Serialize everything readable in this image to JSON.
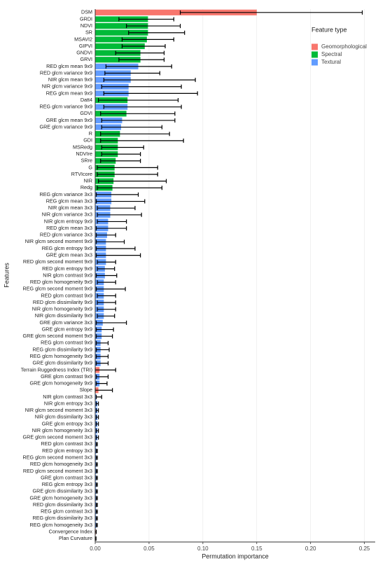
{
  "chart_data": {
    "type": "hbar_errorbar",
    "x_label": "Permutation importance",
    "y_label": "Features",
    "legend_title": "Feature type",
    "categories": [
      "DSM",
      "GRDI",
      "NDVI",
      "SR",
      "MSAVI2",
      "GIPVI",
      "GNDVI",
      "GRVI",
      "RED glcm mean 9x9",
      "RED glcm variance 9x9",
      "NIR glcm mean 9x9",
      "NIR glcm variance 9x9",
      "REG glcm mean 9x9",
      "Datt4",
      "REG glcm variance 9x9",
      "GDVI",
      "GRE glcm mean 9x9",
      "GRE glcm variance 9x9",
      "R",
      "GDI",
      "MSRedg",
      "NDVIre",
      "SRre",
      "G",
      "RTVIcore",
      "NIR",
      "Redg",
      "REG glcm variance 3x3",
      "REG glcm mean 3x3",
      "NIR glcm mean 3x3",
      "NIR glcm variance 3x3",
      "NIR glcm entropy 9x9",
      "RED glcm mean 3x3",
      "RED glcm variance 3x3",
      "NIR glcm second moment 9x9",
      "REG glcm entropy 9x9",
      "GRE glcm mean 3x3",
      "RED glcm second moment 9x9",
      "RED glcm entropy 9x9",
      "NIR glcm contrast 9x9",
      "RED glcm homogeneity 9x9",
      "REG glcm second moment 9x9",
      "RED glcm contrast 9x9",
      "RED glcm dissimilarity 9x9",
      "NIR glcm homogeneity 9x9",
      "NIR glcm dissimilarity 9x9",
      "GRE glcm variance 3x3",
      "GRE glcm entropy 9x9",
      "GRE glcm second moment 9x9",
      "REG glcm contrast 9x9",
      "REG glcm dissimilarity 9x9",
      "REG glcm homogeneity 9x9",
      "GRE glcm dissimilarity 9x9",
      "Terrain Ruggedness Index (TRI)",
      "GRE glcm contrast 9x9",
      "GRE glcm homogeneity 9x9",
      "Slope",
      "NIR glcm contrast 3x3",
      "NIR glcm entropy 3x3",
      "NIR glcm second moment 3x3",
      "NIR glcm dissimilarity 3x3",
      "GRE glcm entropy 3x3",
      "NIR glcm homogeneity 3x3",
      "GRE glcm second moment 3x3",
      "RED glcm contrast 3x3",
      "RED glcm entropy 3x3",
      "REG glcm second moment 3x3",
      "RED glcm homogeneity 3x3",
      "RED glcm second moment 3x3",
      "GRE glcm contrast 3x3",
      "REG glcm entropy 3x3",
      "GRE glcm dissimilarity 3x3",
      "GRE glcm homogeneity 3x3",
      "RED glcm dissimilarity 3x3",
      "REG glcm contrast 3x3",
      "REG glcm dissimilarity 3x3",
      "REG glcm homogeneity 3x3",
      "Convergence Index",
      "Plan Curvature"
    ],
    "values": [
      0.15,
      0.049,
      0.049,
      0.049,
      0.048,
      0.046,
      0.042,
      0.042,
      0.04,
      0.033,
      0.033,
      0.031,
      0.031,
      0.03,
      0.03,
      0.029,
      0.025,
      0.024,
      0.023,
      0.021,
      0.021,
      0.021,
      0.019,
      0.018,
      0.018,
      0.017,
      0.016,
      0.015,
      0.015,
      0.014,
      0.014,
      0.012,
      0.012,
      0.011,
      0.01,
      0.01,
      0.01,
      0.01,
      0.009,
      0.009,
      0.008,
      0.008,
      0.008,
      0.008,
      0.008,
      0.008,
      0.007,
      0.006,
      0.006,
      0.005,
      0.005,
      0.005,
      0.005,
      0.004,
      0.004,
      0.004,
      0.003,
      0.001,
      0.002,
      0.002,
      0.002,
      0.002,
      0.002,
      0.002,
      0.001,
      0.001,
      0.001,
      0.001,
      0.001,
      0.001,
      0.001,
      0.001,
      0.001,
      0.001,
      0.001,
      0.001,
      0.001,
      0.0005,
      0.0003
    ],
    "lower": [
      0.079,
      0.022,
      0.029,
      0.031,
      0.025,
      0.025,
      0.019,
      0.022,
      0.01,
      0.009,
      0.008,
      0.006,
      0.008,
      0.003,
      0.008,
      0.005,
      0.006,
      0.006,
      0.005,
      0.005,
      0.006,
      0.006,
      0.005,
      0.002,
      0.002,
      0.003,
      0.002,
      0.001,
      0.001,
      0.002,
      0.002,
      0.002,
      0.001,
      0.001,
      0.001,
      0.001,
      0.001,
      0.002,
      0.002,
      0.001,
      0.002,
      0.001,
      0.002,
      0.002,
      0.002,
      0.002,
      0.001,
      0.001,
      0.001,
      0.001,
      0.001,
      0.001,
      0.001,
      0.0,
      0.001,
      0.001,
      0.0,
      0.001,
      0.001,
      0.001,
      0.001,
      0.001,
      0.001,
      0.001,
      0.001,
      0.001,
      0.001,
      0.001,
      0.001,
      0.001,
      0.001,
      0.001,
      0.001,
      0.001,
      0.001,
      0.001,
      0.001,
      0.0,
      0.0
    ],
    "upper": [
      0.248,
      0.073,
      0.079,
      0.083,
      0.073,
      0.065,
      0.064,
      0.064,
      0.071,
      0.06,
      0.093,
      0.08,
      0.095,
      0.077,
      0.08,
      0.074,
      0.074,
      0.062,
      0.069,
      0.082,
      0.045,
      0.042,
      0.042,
      0.058,
      0.058,
      0.066,
      0.062,
      0.04,
      0.046,
      0.037,
      0.043,
      0.029,
      0.029,
      0.019,
      0.027,
      0.037,
      0.042,
      0.019,
      0.018,
      0.02,
      0.019,
      0.028,
      0.019,
      0.019,
      0.019,
      0.018,
      0.029,
      0.017,
      0.016,
      0.012,
      0.013,
      0.012,
      0.012,
      0.019,
      0.012,
      0.011,
      0.016,
      0.006,
      0.003,
      0.003,
      0.003,
      0.003,
      0.003,
      0.003,
      0.002,
      0.002,
      0.002,
      0.002,
      0.002,
      0.002,
      0.002,
      0.002,
      0.002,
      0.002,
      0.002,
      0.002,
      0.002,
      0.001,
      0.0008
    ],
    "series": [
      {
        "name": "Geomorphological",
        "color": "#f8766d",
        "rows": [
          0,
          53,
          56,
          77,
          78
        ]
      },
      {
        "name": "Spectral",
        "color": "#00ba38",
        "rows": [
          1,
          2,
          3,
          4,
          5,
          6,
          7,
          13,
          15,
          18,
          19,
          20,
          21,
          22,
          23,
          24,
          25,
          26
        ]
      },
      {
        "name": "Textural",
        "color": "#619cff",
        "rows": [
          8,
          9,
          10,
          11,
          12,
          14,
          16,
          17,
          27,
          28,
          29,
          30,
          31,
          32,
          33,
          34,
          35,
          36,
          37,
          38,
          39,
          40,
          41,
          42,
          43,
          44,
          45,
          46,
          47,
          48,
          49,
          50,
          51,
          52,
          54,
          55,
          57,
          58,
          59,
          60,
          61,
          62,
          63,
          64,
          65,
          66,
          67,
          68,
          69,
          70,
          71,
          72,
          73,
          74,
          75,
          76
        ]
      }
    ],
    "xlim": [
      0,
      0.26
    ],
    "xticks": [
      {
        "value": 0,
        "label": "0.00"
      },
      {
        "value": 0.05,
        "label": "0.05"
      },
      {
        "value": 0.1,
        "label": "0.10"
      },
      {
        "value": 0.15,
        "label": "0.15"
      },
      {
        "value": 0.2,
        "label": "0.20"
      },
      {
        "value": 0.25,
        "label": "0.25"
      }
    ],
    "grid": true
  }
}
